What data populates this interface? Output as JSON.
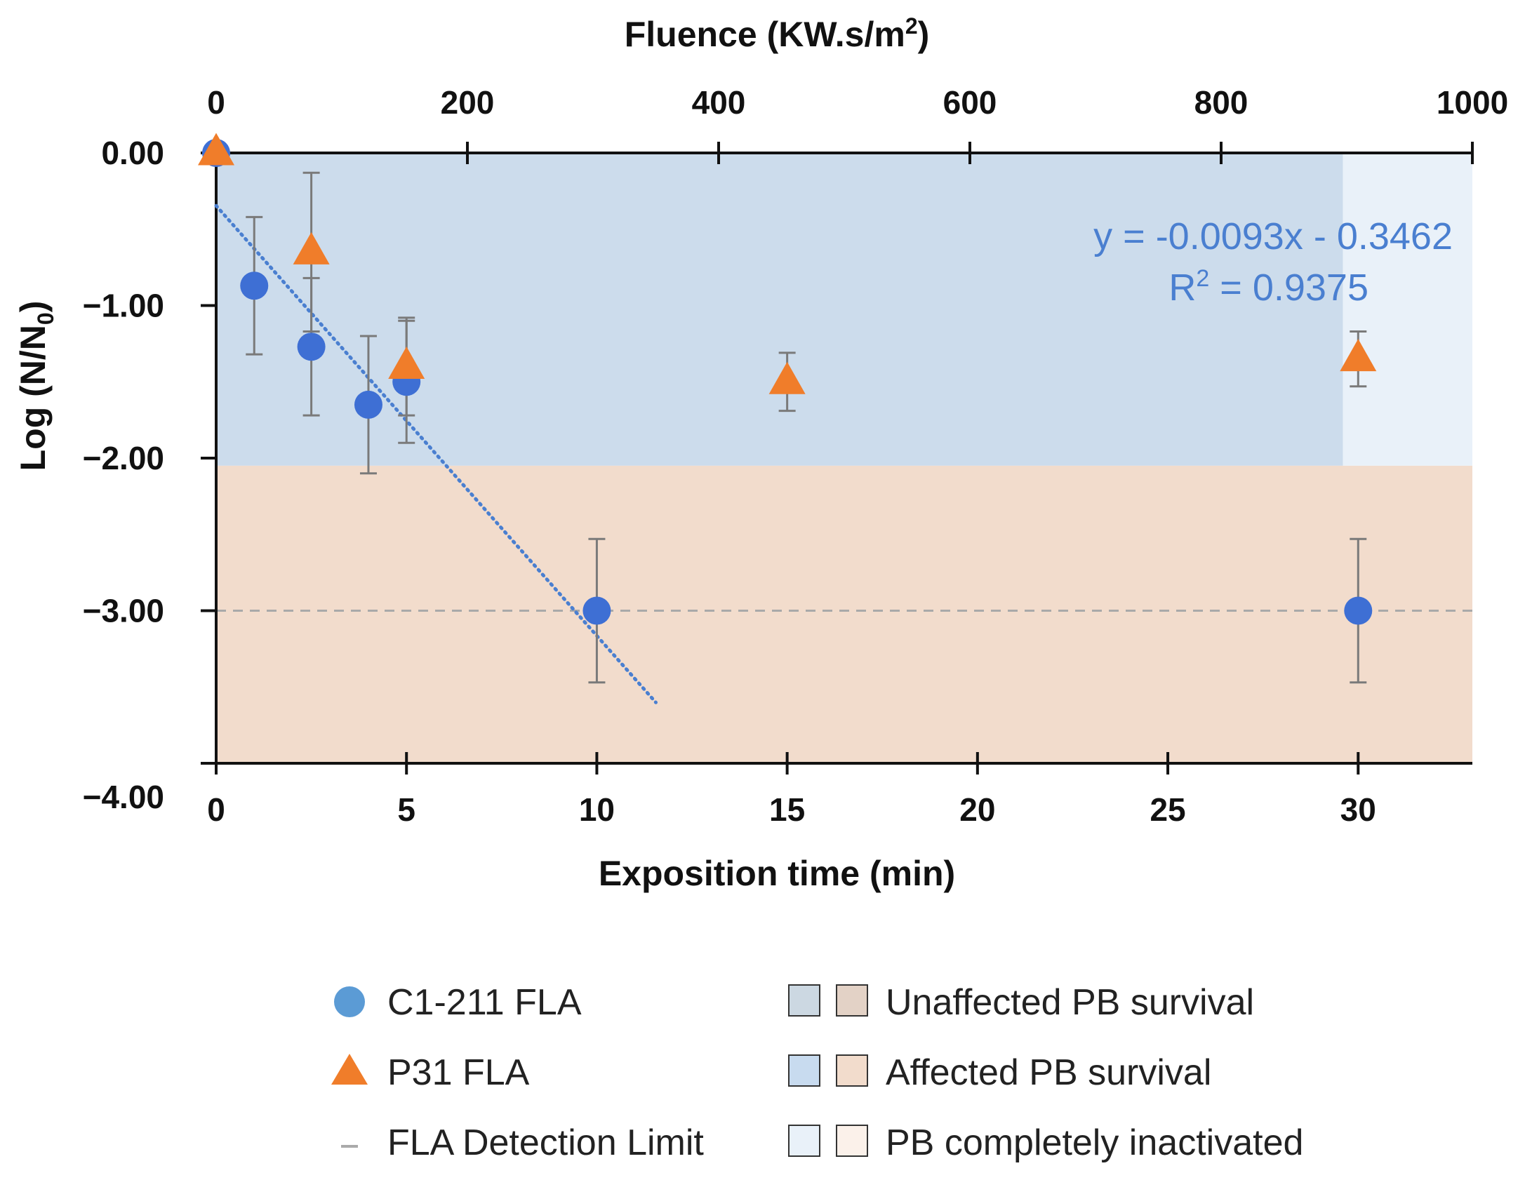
{
  "chart_data": {
    "type": "scatter",
    "ylabel": "Log (N/N",
    "ylabel_sub": "0",
    "ylabel_end": ")",
    "xlabel": "Exposition time (min)",
    "x2label": "Fluence (KW.s/m",
    "x2label_sup": "2",
    "x2label_end": ")",
    "xlim": [
      0,
      33
    ],
    "ylim": [
      -4,
      0
    ],
    "x2lim": [
      0,
      1000
    ],
    "x_ticks": [
      0,
      5,
      10,
      15,
      20,
      25,
      30
    ],
    "y_ticks": [
      0,
      -1,
      -2,
      -3,
      -4
    ],
    "y_tick_labels": [
      "0.00",
      "−1.00",
      "−2.00",
      "−3.00",
      "−4.00"
    ],
    "x2_ticks": [
      0,
      200,
      400,
      600,
      800,
      1000
    ],
    "series": [
      {
        "name": "C1-211 FLA",
        "marker": "circle",
        "color": "#3e6fd4",
        "points": [
          {
            "x": 0,
            "y": 0,
            "err": 0
          },
          {
            "x": 1,
            "y": -0.87,
            "err": 0.45
          },
          {
            "x": 2.5,
            "y": -1.27,
            "err": 0.45
          },
          {
            "x": 4,
            "y": -1.65,
            "err": 0.45
          },
          {
            "x": 5,
            "y": -1.5,
            "err": 0.4
          },
          {
            "x": 10,
            "y": -3.0,
            "err": 0.47
          },
          {
            "x": 30,
            "y": -3.0,
            "err": 0.47
          }
        ]
      },
      {
        "name": "P31 FLA",
        "marker": "triangle",
        "color": "#f07d2a",
        "points": [
          {
            "x": 0,
            "y": 0,
            "err": 0
          },
          {
            "x": 2.5,
            "y": -0.65,
            "err": 0.52
          },
          {
            "x": 5,
            "y": -1.4,
            "err": 0.32
          },
          {
            "x": 15,
            "y": -1.5,
            "err": 0.19
          },
          {
            "x": 30,
            "y": -1.35,
            "err": 0.18
          }
        ]
      }
    ],
    "trendline": {
      "equation": "y = -0.0093x - 0.3462",
      "r2_prefix": "R",
      "r2_sup": "2",
      "r2_value": " = 0.9375",
      "slope": -0.0093,
      "intercept": -0.3462,
      "fluence_range": [
        0,
        350
      ],
      "color": "#4a7fd0"
    },
    "detection_limit": -3.0,
    "regions": [
      {
        "name": "affected-survival-zone",
        "x0": 0,
        "x1": 29.6,
        "y0": 0,
        "y1": -2.05,
        "color": "#ccdcec"
      },
      {
        "name": "completely-inactivated-zone",
        "x0": 29.6,
        "x1": 33,
        "y0": 0,
        "y1": -2.05,
        "color": "#e9f1f9"
      },
      {
        "name": "affected-survival-lower-zone",
        "x0": 0,
        "x1": 33,
        "y0": -2.05,
        "y1": -4,
        "color": "#f2dccc"
      }
    ],
    "legend": {
      "left": [
        {
          "label": "C1-211 FLA",
          "symbol": "circle",
          "color": "#5b9bd5"
        },
        {
          "label": "P31 FLA",
          "symbol": "triangle",
          "color": "#f07d2a"
        },
        {
          "label": "FLA Detection Limit",
          "symbol": "dash",
          "color": "#aaaaaa"
        }
      ],
      "right": [
        {
          "label": "Unaffected PB survival",
          "swatch_a": "#ccd8e2",
          "swatch_b": "#e3d2c6"
        },
        {
          "label": "Affected PB survival",
          "swatch_a": "#c8dbef",
          "swatch_b": "#f2dccc"
        },
        {
          "label": "PB completely inactivated",
          "swatch_a": "#e9f1f9",
          "swatch_b": "#fbf1ea"
        }
      ]
    }
  }
}
